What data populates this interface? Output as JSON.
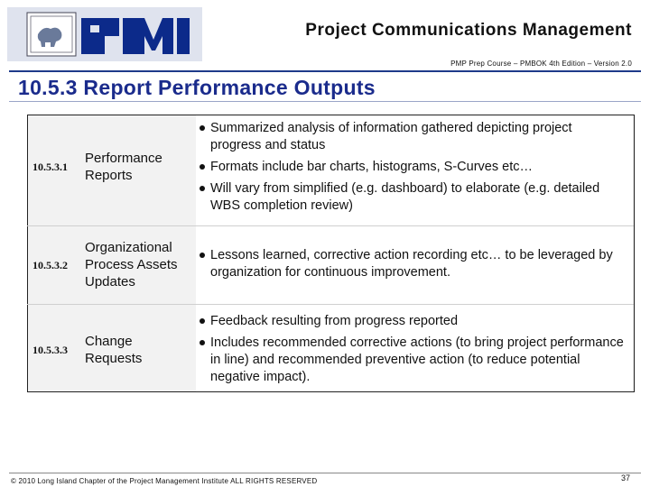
{
  "header": {
    "title": "Project Communications Management",
    "subtitle": "PMP Prep Course – PMBOK 4th Edition – Version 2.0",
    "logo": "PMI"
  },
  "slide": {
    "title": "10.5.3 Report Performance Outputs"
  },
  "rows": [
    {
      "id": "10.5.3.1",
      "label_lines": [
        "Performance",
        "Reports"
      ],
      "bullets": [
        "Summarized analysis of information gathered depicting project progress and status",
        "Formats include bar charts, histograms, S-Curves etc…",
        "Will vary from simplified (e.g. dashboard) to elaborate (e.g. detailed WBS completion review)"
      ]
    },
    {
      "id": "10.5.3.2",
      "label_lines": [
        "Organizational",
        "Process Assets",
        "Updates"
      ],
      "bullets": [
        "Lessons learned, corrective action recording etc… to be leveraged by organization for continuous improvement."
      ]
    },
    {
      "id": "10.5.3.3",
      "label_lines": [
        "Change",
        "Requests"
      ],
      "bullets": [
        "Feedback resulting from progress reported",
        " Includes recommended corrective actions (to bring project performance in line) and recommended preventive action (to reduce potential negative impact)."
      ]
    }
  ],
  "footer": {
    "copyright": "© 2010 Long Island Chapter of the Project Management Institute  ALL RIGHTS RESERVED",
    "page_number": "37"
  }
}
